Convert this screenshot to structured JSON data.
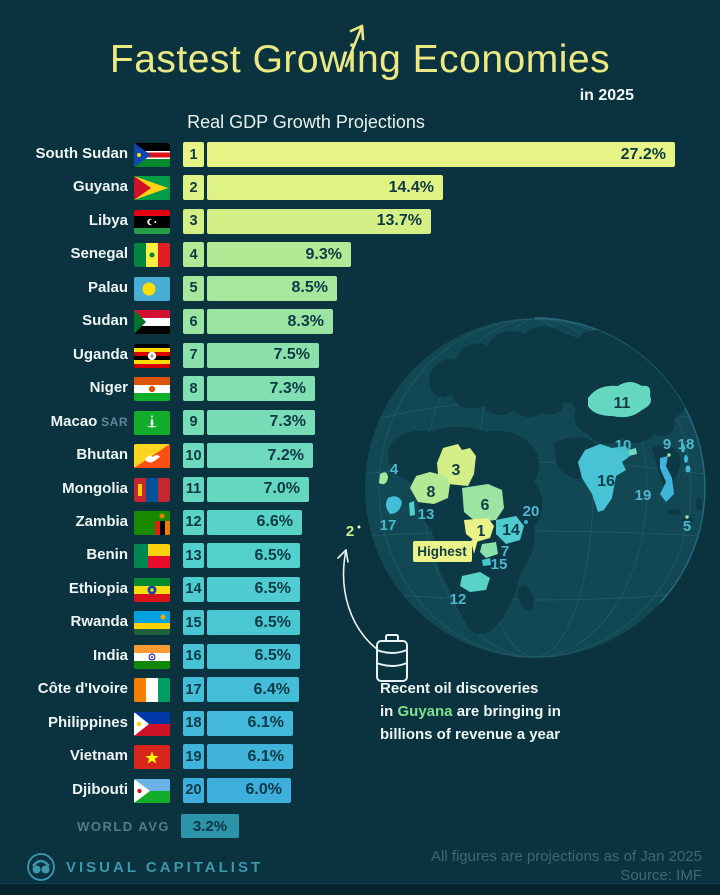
{
  "header": {
    "title": "Fastest Growing Economies",
    "year_label": "in 2025",
    "chart_label": "Real GDP Growth Projections"
  },
  "chart_data": {
    "type": "bar",
    "title": "Fastest Growing Economies in 2025",
    "subtitle": "Real GDP Growth Projections",
    "unit": "%",
    "xlim": [
      0,
      28
    ],
    "legend": "none",
    "orientation": "horizontal",
    "categories": [
      "South Sudan",
      "Guyana",
      "Libya",
      "Senegal",
      "Palau",
      "Sudan",
      "Uganda",
      "Niger",
      "Macao SAR",
      "Bhutan",
      "Mongolia",
      "Zambia",
      "Benin",
      "Ethiopia",
      "Rwanda",
      "India",
      "Côte d'Ivoire",
      "Philippines",
      "Vietnam",
      "Djibouti"
    ],
    "values": [
      27.2,
      14.4,
      13.7,
      9.3,
      8.5,
      8.3,
      7.5,
      7.3,
      7.3,
      7.2,
      7.0,
      6.6,
      6.5,
      6.5,
      6.5,
      6.5,
      6.4,
      6.1,
      6.1,
      6.0
    ],
    "world_avg": {
      "label": "WORLD AVG",
      "value": 3.2,
      "display": "3.2%"
    }
  },
  "rows": [
    {
      "rank": "1",
      "country": "South Sudan",
      "suffix": "",
      "value": 27.2,
      "display": "27.2%",
      "flag": "south-sudan",
      "color": "#e7f485"
    },
    {
      "rank": "2",
      "country": "Guyana",
      "suffix": "",
      "value": 14.4,
      "display": "14.4%",
      "flag": "guyana",
      "color": "#dff284"
    },
    {
      "rank": "3",
      "country": "Libya",
      "suffix": "",
      "value": 13.7,
      "display": "13.7%",
      "flag": "libya",
      "color": "#d3ef85"
    },
    {
      "rank": "4",
      "country": "Senegal",
      "suffix": "",
      "value": 9.3,
      "display": "9.3%",
      "flag": "senegal",
      "color": "#b2e995"
    },
    {
      "rank": "5",
      "country": "Palau",
      "suffix": "",
      "value": 8.5,
      "display": "8.5%",
      "flag": "palau",
      "color": "#a7e79b"
    },
    {
      "rank": "6",
      "country": "Sudan",
      "suffix": "",
      "value": 8.3,
      "display": "8.3%",
      "flag": "sudan",
      "color": "#9be4a2"
    },
    {
      "rank": "7",
      "country": "Uganda",
      "suffix": "",
      "value": 7.5,
      "display": "7.5%",
      "flag": "uganda",
      "color": "#8ce1ab"
    },
    {
      "rank": "8",
      "country": "Niger",
      "suffix": "",
      "value": 7.3,
      "display": "7.3%",
      "flag": "niger",
      "color": "#81dfb1"
    },
    {
      "rank": "9",
      "country": "Macao",
      "suffix": "SAR",
      "value": 7.3,
      "display": "7.3%",
      "flag": "macao",
      "color": "#78dcb6"
    },
    {
      "rank": "10",
      "country": "Bhutan",
      "suffix": "",
      "value": 7.2,
      "display": "7.2%",
      "flag": "bhutan",
      "color": "#6ed9bc"
    },
    {
      "rank": "11",
      "country": "Mongolia",
      "suffix": "",
      "value": 7.0,
      "display": "7.0%",
      "flag": "mongolia",
      "color": "#65d7c1"
    },
    {
      "rank": "12",
      "country": "Zambia",
      "suffix": "",
      "value": 6.6,
      "display": "6.6%",
      "flag": "zambia",
      "color": "#59d3c7"
    },
    {
      "rank": "13",
      "country": "Benin",
      "suffix": "",
      "value": 6.5,
      "display": "6.5%",
      "flag": "benin",
      "color": "#52d0cb"
    },
    {
      "rank": "14",
      "country": "Ethiopia",
      "suffix": "",
      "value": 6.5,
      "display": "6.5%",
      "flag": "ethiopia",
      "color": "#4ecccf"
    },
    {
      "rank": "15",
      "country": "Rwanda",
      "suffix": "",
      "value": 6.5,
      "display": "6.5%",
      "flag": "rwanda",
      "color": "#4ac8d2"
    },
    {
      "rank": "16",
      "country": "India",
      "suffix": "",
      "value": 6.5,
      "display": "6.5%",
      "flag": "india",
      "color": "#47c3d5"
    },
    {
      "rank": "17",
      "country": "Côte d'Ivoire",
      "suffix": "",
      "value": 6.4,
      "display": "6.4%",
      "flag": "cote-divoire",
      "color": "#44bdd8"
    },
    {
      "rank": "18",
      "country": "Philippines",
      "suffix": "",
      "value": 6.1,
      "display": "6.1%",
      "flag": "philippines",
      "color": "#42b8da"
    },
    {
      "rank": "19",
      "country": "Vietnam",
      "suffix": "",
      "value": 6.1,
      "display": "6.1%",
      "flag": "vietnam",
      "color": "#40b3db"
    },
    {
      "rank": "20",
      "country": "Djibouti",
      "suffix": "",
      "value": 6.0,
      "display": "6.0%",
      "flag": "djibouti",
      "color": "#3eaedc"
    }
  ],
  "globe": {
    "highest_label": "Highest",
    "note": {
      "line1": "Recent oil discoveries",
      "line2_pre": "in ",
      "line2_highlight": "Guyana",
      "line2_post": " are bringing in",
      "line3": "billions of revenue a year"
    }
  },
  "footer": {
    "brand": "VISUAL CAPITALIST",
    "note_line1": "All figures are projections as of Jan 2025",
    "note_line2": "Source: IMF"
  },
  "colors": {
    "background": "#0a333f",
    "title": "#ece985",
    "bar_text": "#0d3945",
    "world_avg_bar": "#2d93a8",
    "globe_ocean": "#124754",
    "globe_land": "#0d3846",
    "note_highlight": "#82df90",
    "brand_teal": "#3e97ad"
  }
}
